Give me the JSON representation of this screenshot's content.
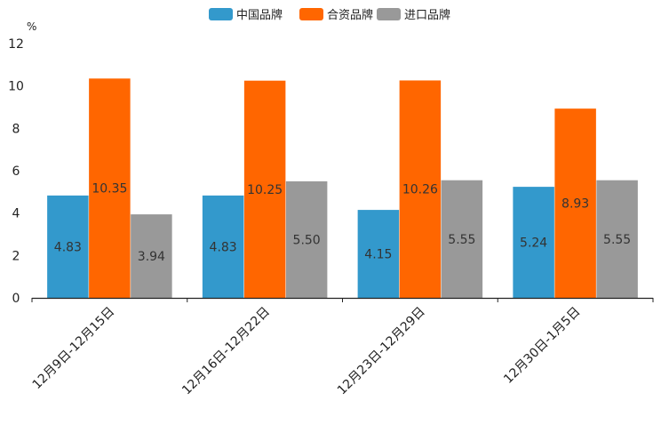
{
  "chart_data": {
    "type": "bar",
    "title": "",
    "unit_label": "%",
    "xlabel": "",
    "ylabel": "%",
    "ylim": [
      0,
      12
    ],
    "yticks": [
      0,
      2,
      4,
      6,
      8,
      10,
      12
    ],
    "grid": false,
    "legend_position": "top-center",
    "categories": [
      "12月9日-12月15日",
      "12月16日-12月22日",
      "12月23日-12月29日",
      "12月30日-1月5日"
    ],
    "series": [
      {
        "name": "中国品牌",
        "color": "#3399cc",
        "values": [
          4.83,
          4.83,
          4.15,
          5.24
        ],
        "labels": [
          "4.83",
          "4.83",
          "4.15",
          "5.24"
        ]
      },
      {
        "name": "合资品牌",
        "color": "#ff6600",
        "values": [
          10.35,
          10.25,
          10.26,
          8.93
        ],
        "labels": [
          "10.35",
          "10.25",
          "10.26",
          "8.93"
        ]
      },
      {
        "name": "进口品牌",
        "color": "#999999",
        "values": [
          3.94,
          5.5,
          5.55,
          5.55
        ],
        "labels": [
          "3.94",
          "5.50",
          "5.55",
          "5.55"
        ]
      }
    ]
  }
}
